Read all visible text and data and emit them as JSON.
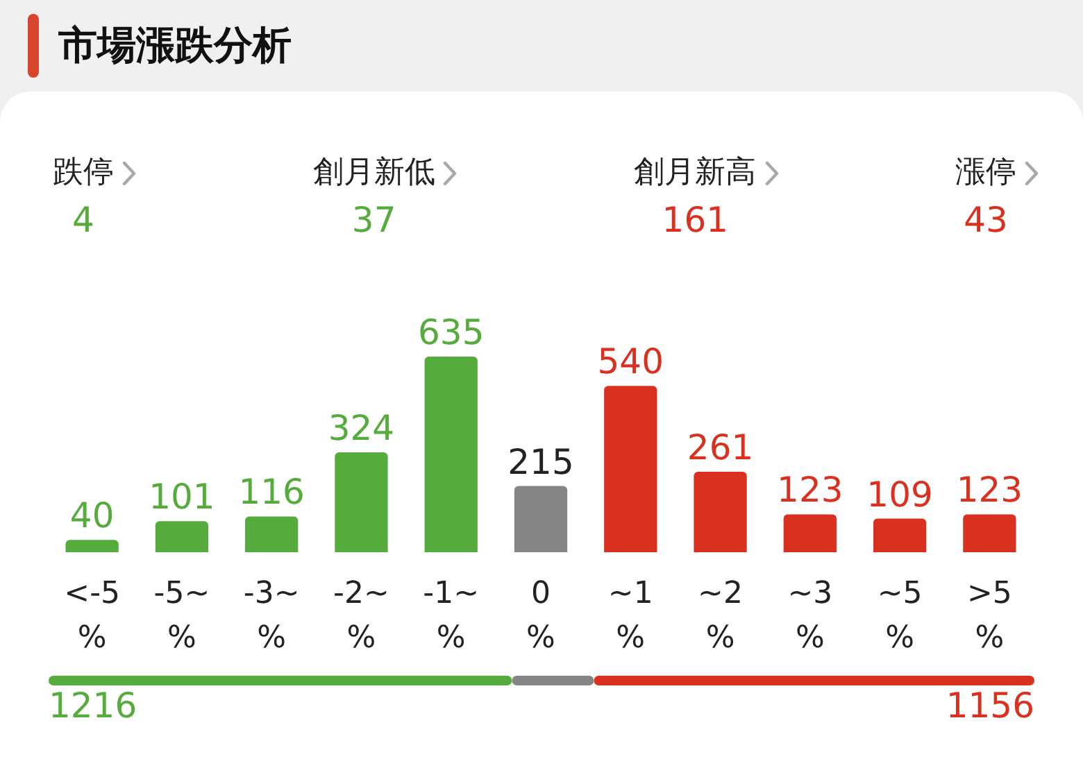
{
  "chart_data": [
    {
      "type": "bar",
      "title": "市場漲跌分析",
      "categories": [
        "<-5%",
        "-5~%",
        "-3~%",
        "-2~%",
        "-1~%",
        "0%",
        "~1%",
        "~2%",
        "~3%",
        "~5%",
        ">5%"
      ],
      "values": [
        40,
        101,
        116,
        324,
        635,
        215,
        540,
        261,
        123,
        109,
        123
      ],
      "colors": [
        "#55ab3b",
        "#55ab3b",
        "#55ab3b",
        "#55ab3b",
        "#55ab3b",
        "#858585",
        "#d9301f",
        "#d9301f",
        "#d9301f",
        "#d9301f",
        "#d9301f"
      ],
      "data_labels": true,
      "tick_labels": "x",
      "annotations": [
        "跌停",
        "4",
        "創月新低",
        "37",
        "創月新高",
        "161",
        "漲停",
        "43"
      ]
    },
    {
      "type": "bar",
      "orientation": "horizontal",
      "stacked": true,
      "categories": [
        null
      ],
      "tick_labels": false,
      "series": [
        {
          "color": "#55ab3b",
          "values": [
            1216
          ],
          "value_labels": [
            "1216"
          ]
        },
        {
          "color": "#858585",
          "values": [
            215
          ]
        },
        {
          "color": "#d9301f",
          "values": [
            1156
          ],
          "value_labels": [
            "1156"
          ]
        }
      ]
    }
  ]
}
